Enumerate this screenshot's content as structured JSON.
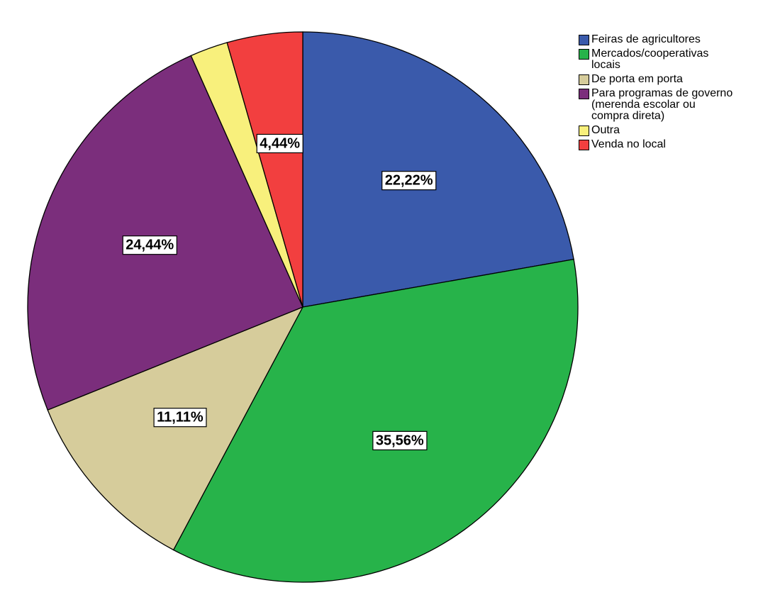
{
  "chart_data": {
    "type": "pie",
    "title": "",
    "categories": [
      "Feiras de agricultores",
      "Mercados/cooperativas locais",
      "De porta em porta",
      "Para programas de governo (merenda escolar ou compra direta)",
      "Outra",
      "Venda no local"
    ],
    "legend_labels": [
      "Feiras de agricultores",
      "Mercados/cooperativas\nlocais",
      "De porta em porta",
      "Para programas de governo\n(merenda escolar ou\ncompra direta)",
      "Outra",
      "Venda no local"
    ],
    "values": [
      22.22,
      35.56,
      11.11,
      24.44,
      2.22,
      4.44
    ],
    "labels": [
      "22,22%",
      "35,56%",
      "11,11%",
      "24,44%",
      "",
      "4,44%"
    ],
    "colors": [
      "#3a5aab",
      "#27b34a",
      "#d6cc9b",
      "#7b2e7c",
      "#f8f07c",
      "#f23f3f"
    ],
    "legend_position": "top-right",
    "start_angle": "12 o'clock",
    "direction": "clockwise"
  }
}
